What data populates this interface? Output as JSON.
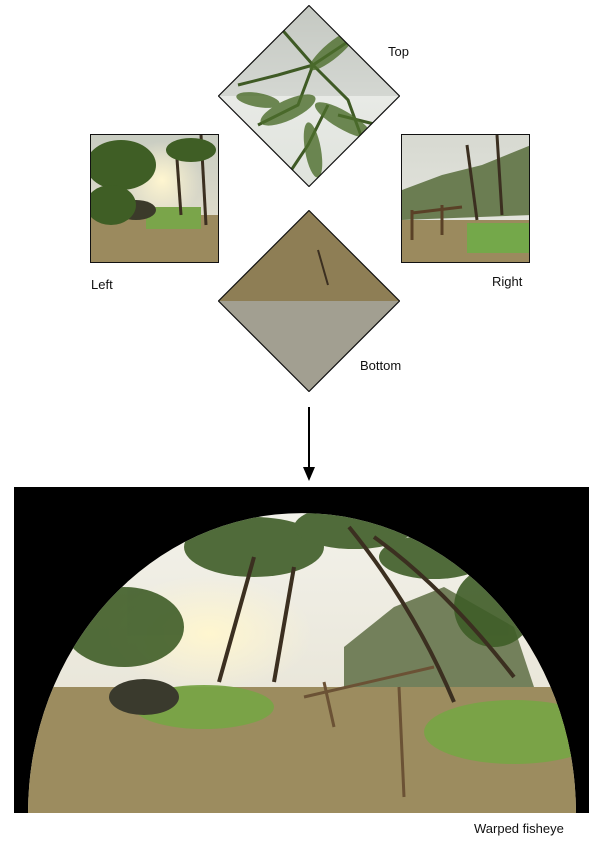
{
  "labels": {
    "top": "Top",
    "left": "Left",
    "right": "Right",
    "bottom": "Bottom",
    "output": "Warped fisheye"
  },
  "colors": {
    "background": "#ffffff",
    "outline": "#111111",
    "sky": "#e9ebe4",
    "palm": "#4f6a2e",
    "grass": "#79a843",
    "ground": "#9a8a5c",
    "frame": "#000000"
  }
}
